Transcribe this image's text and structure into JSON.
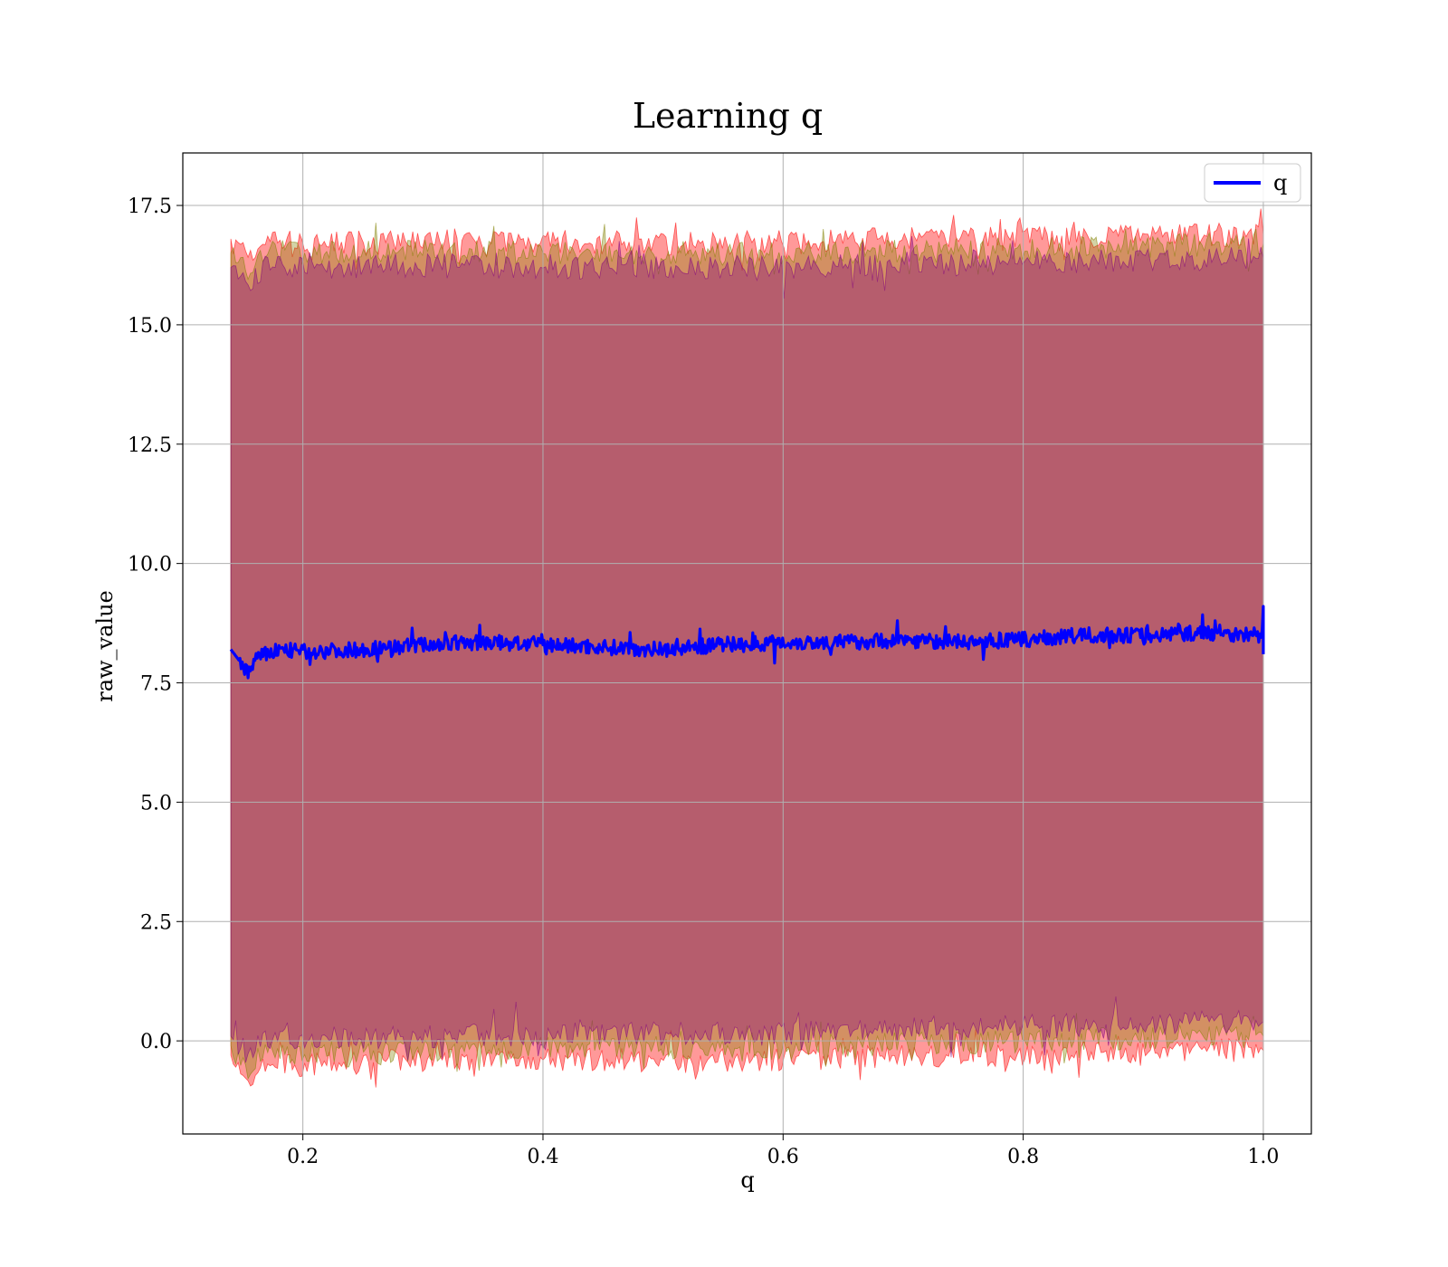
{
  "chart_data": {
    "type": "line",
    "title": "Learning q",
    "xlabel": "q",
    "ylabel": "raw_value",
    "xlim": [
      0.1,
      1.04
    ],
    "ylim": [
      -1.95,
      18.6
    ],
    "x_ticks": [
      "0.2",
      "0.4",
      "0.6",
      "0.8",
      "1.0"
    ],
    "x_tick_values": [
      0.2,
      0.4,
      0.6,
      0.8,
      1.0
    ],
    "y_ticks": [
      "0.0",
      "2.5",
      "5.0",
      "7.5",
      "10.0",
      "12.5",
      "15.0",
      "17.5"
    ],
    "y_tick_values": [
      0,
      2.5,
      5,
      7.5,
      10,
      12.5,
      15,
      17.5
    ],
    "grid": true,
    "legend": {
      "position": "top-right",
      "entries": [
        {
          "label": "q",
          "color": "#0000ff"
        }
      ]
    },
    "series": [
      {
        "name": "q",
        "color": "#0000ff",
        "x": [
          0.14,
          0.155,
          0.16,
          0.18,
          0.2,
          0.25,
          0.3,
          0.35,
          0.4,
          0.45,
          0.5,
          0.55,
          0.6,
          0.65,
          0.7,
          0.75,
          0.8,
          0.85,
          0.9,
          0.95,
          1.0
        ],
        "y": [
          8.2,
          7.7,
          8.0,
          8.2,
          8.15,
          8.2,
          8.3,
          8.35,
          8.3,
          8.25,
          8.2,
          8.3,
          8.35,
          8.35,
          8.4,
          8.35,
          8.4,
          8.5,
          8.5,
          8.55,
          8.5
        ]
      }
    ],
    "bands": [
      {
        "color": "#ff0000",
        "alpha": 0.4,
        "outer": true,
        "x": [
          0.14,
          0.155,
          0.17,
          0.2,
          0.3,
          0.4,
          0.5,
          0.6,
          0.7,
          0.8,
          0.9,
          1.0
        ],
        "upper": [
          16.8,
          16.3,
          16.9,
          16.7,
          16.8,
          16.75,
          16.7,
          16.75,
          16.8,
          16.8,
          16.85,
          16.9
        ],
        "lower": [
          -0.3,
          -0.9,
          -0.5,
          -0.5,
          -0.4,
          -0.4,
          -0.4,
          -0.4,
          -0.3,
          -0.3,
          -0.2,
          -0.2
        ]
      },
      {
        "color": "#808000",
        "alpha": 0.35,
        "outer": false,
        "x": [
          0.14,
          0.155,
          0.17,
          0.2,
          0.3,
          0.4,
          0.5,
          0.6,
          0.7,
          0.8,
          0.9,
          1.0
        ],
        "upper": [
          16.5,
          16.1,
          16.6,
          16.5,
          16.55,
          16.5,
          16.5,
          16.5,
          16.55,
          16.6,
          16.65,
          16.7
        ],
        "lower": [
          -0.1,
          -0.6,
          -0.25,
          -0.25,
          -0.2,
          -0.15,
          -0.15,
          -0.15,
          -0.05,
          0.0,
          0.05,
          0.1
        ]
      },
      {
        "color": "#800080",
        "alpha": 0.35,
        "outer": false,
        "x": [
          0.14,
          0.155,
          0.17,
          0.2,
          0.3,
          0.4,
          0.5,
          0.6,
          0.7,
          0.8,
          0.9,
          1.0
        ],
        "upper": [
          16.2,
          15.8,
          16.3,
          16.2,
          16.25,
          16.2,
          16.2,
          16.2,
          16.3,
          16.3,
          16.35,
          16.4
        ],
        "lower": [
          0.1,
          -0.3,
          0.05,
          0.05,
          0.1,
          0.15,
          0.15,
          0.15,
          0.25,
          0.3,
          0.35,
          0.4
        ]
      }
    ]
  }
}
